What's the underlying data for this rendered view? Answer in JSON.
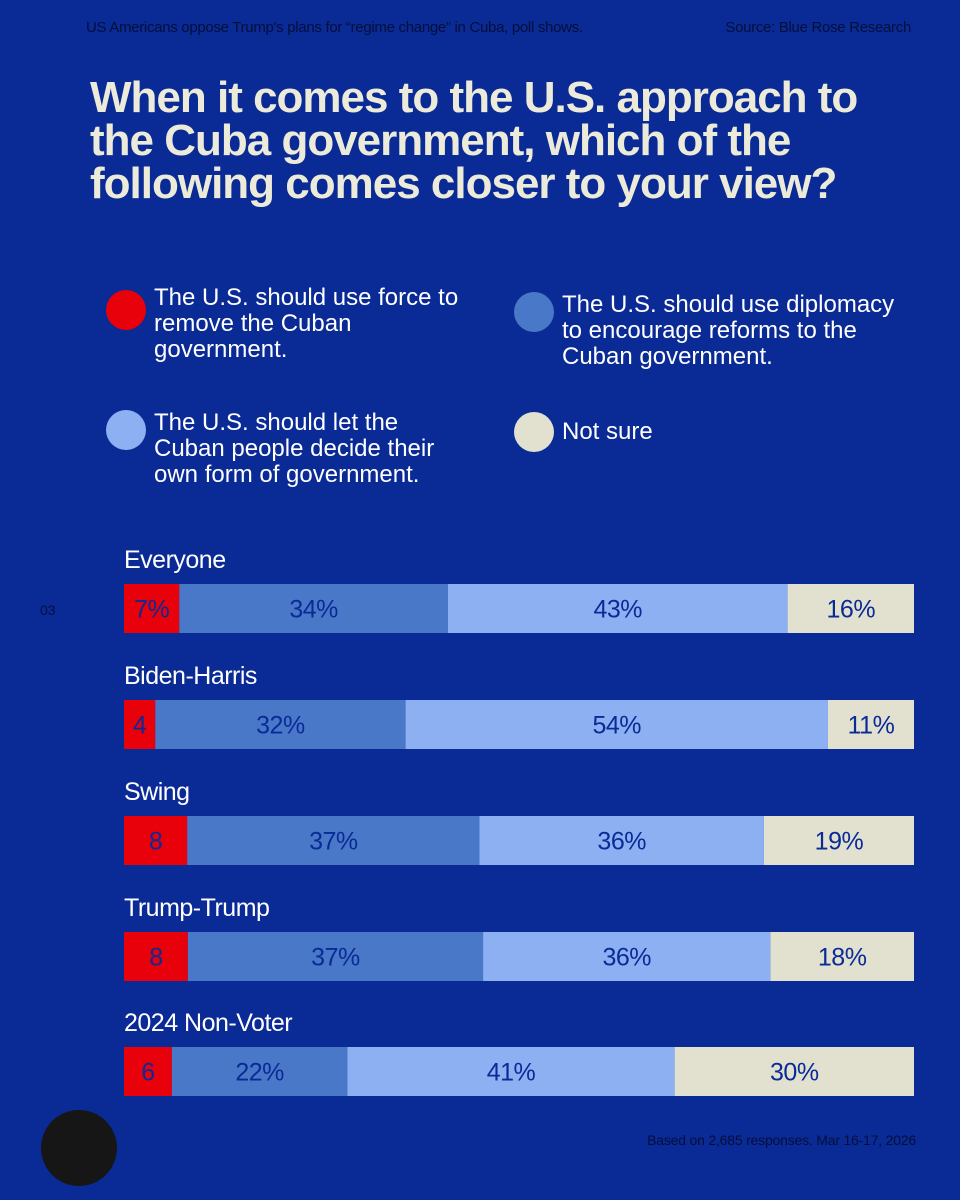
{
  "header": {
    "subtitle": "US Americans oppose Trump's plans for “regime change” in Cuba, poll shows.",
    "source": "Source: Blue Rose Research"
  },
  "title": "When it comes to the U.S. approach to the Cuba government, which of the following comes closer to your view?",
  "legend": [
    {
      "label": "The U.S. should use force to remove the Cuban government.",
      "color": "#e8000b"
    },
    {
      "label": "The U.S. should use diplomacy to encourage reforms to the Cuban government.",
      "color": "#4a78c9"
    },
    {
      "label": "The U.S. should let the Cuban people decide their own form of government.",
      "color": "#8db0f3"
    },
    {
      "label": "Not sure",
      "color": "#e2e1d0"
    }
  ],
  "page_number": "03",
  "footer": "Based on 2,685 responses. Mar 16-17, 2026",
  "chart_data": {
    "type": "bar",
    "orientation": "horizontal-stacked-100",
    "title": "When it comes to the U.S. approach to the Cuba government, which of the following comes closer to your view?",
    "categories": [
      "Everyone",
      "Biden-Harris",
      "Swing",
      "Trump-Trump",
      "2024 Non-Voter"
    ],
    "series": [
      {
        "name": "The U.S. should use force to remove the Cuban government.",
        "color": "#e8000b",
        "values": [
          7,
          4,
          8,
          8,
          6
        ],
        "labels": [
          "7%",
          "4",
          "8",
          "8",
          "6"
        ]
      },
      {
        "name": "The U.S. should use diplomacy to encourage reforms to the Cuban government.",
        "color": "#4a78c9",
        "values": [
          34,
          32,
          37,
          37,
          22
        ],
        "labels": [
          "34%",
          "32%",
          "37%",
          "37%",
          "22%"
        ]
      },
      {
        "name": "The U.S. should let the Cuban people decide their own form of government.",
        "color": "#8db0f3",
        "values": [
          43,
          54,
          36,
          36,
          41
        ],
        "labels": [
          "43%",
          "54%",
          "36%",
          "36%",
          "41%"
        ]
      },
      {
        "name": "Not sure",
        "color": "#e2e1d0",
        "values": [
          16,
          11,
          19,
          18,
          30
        ],
        "labels": [
          "16%",
          "11%",
          "19%",
          "18%",
          "30%"
        ]
      }
    ],
    "label_color": "#0a2a96",
    "xlim": [
      0,
      100
    ],
    "grid": false,
    "legend": "top"
  }
}
